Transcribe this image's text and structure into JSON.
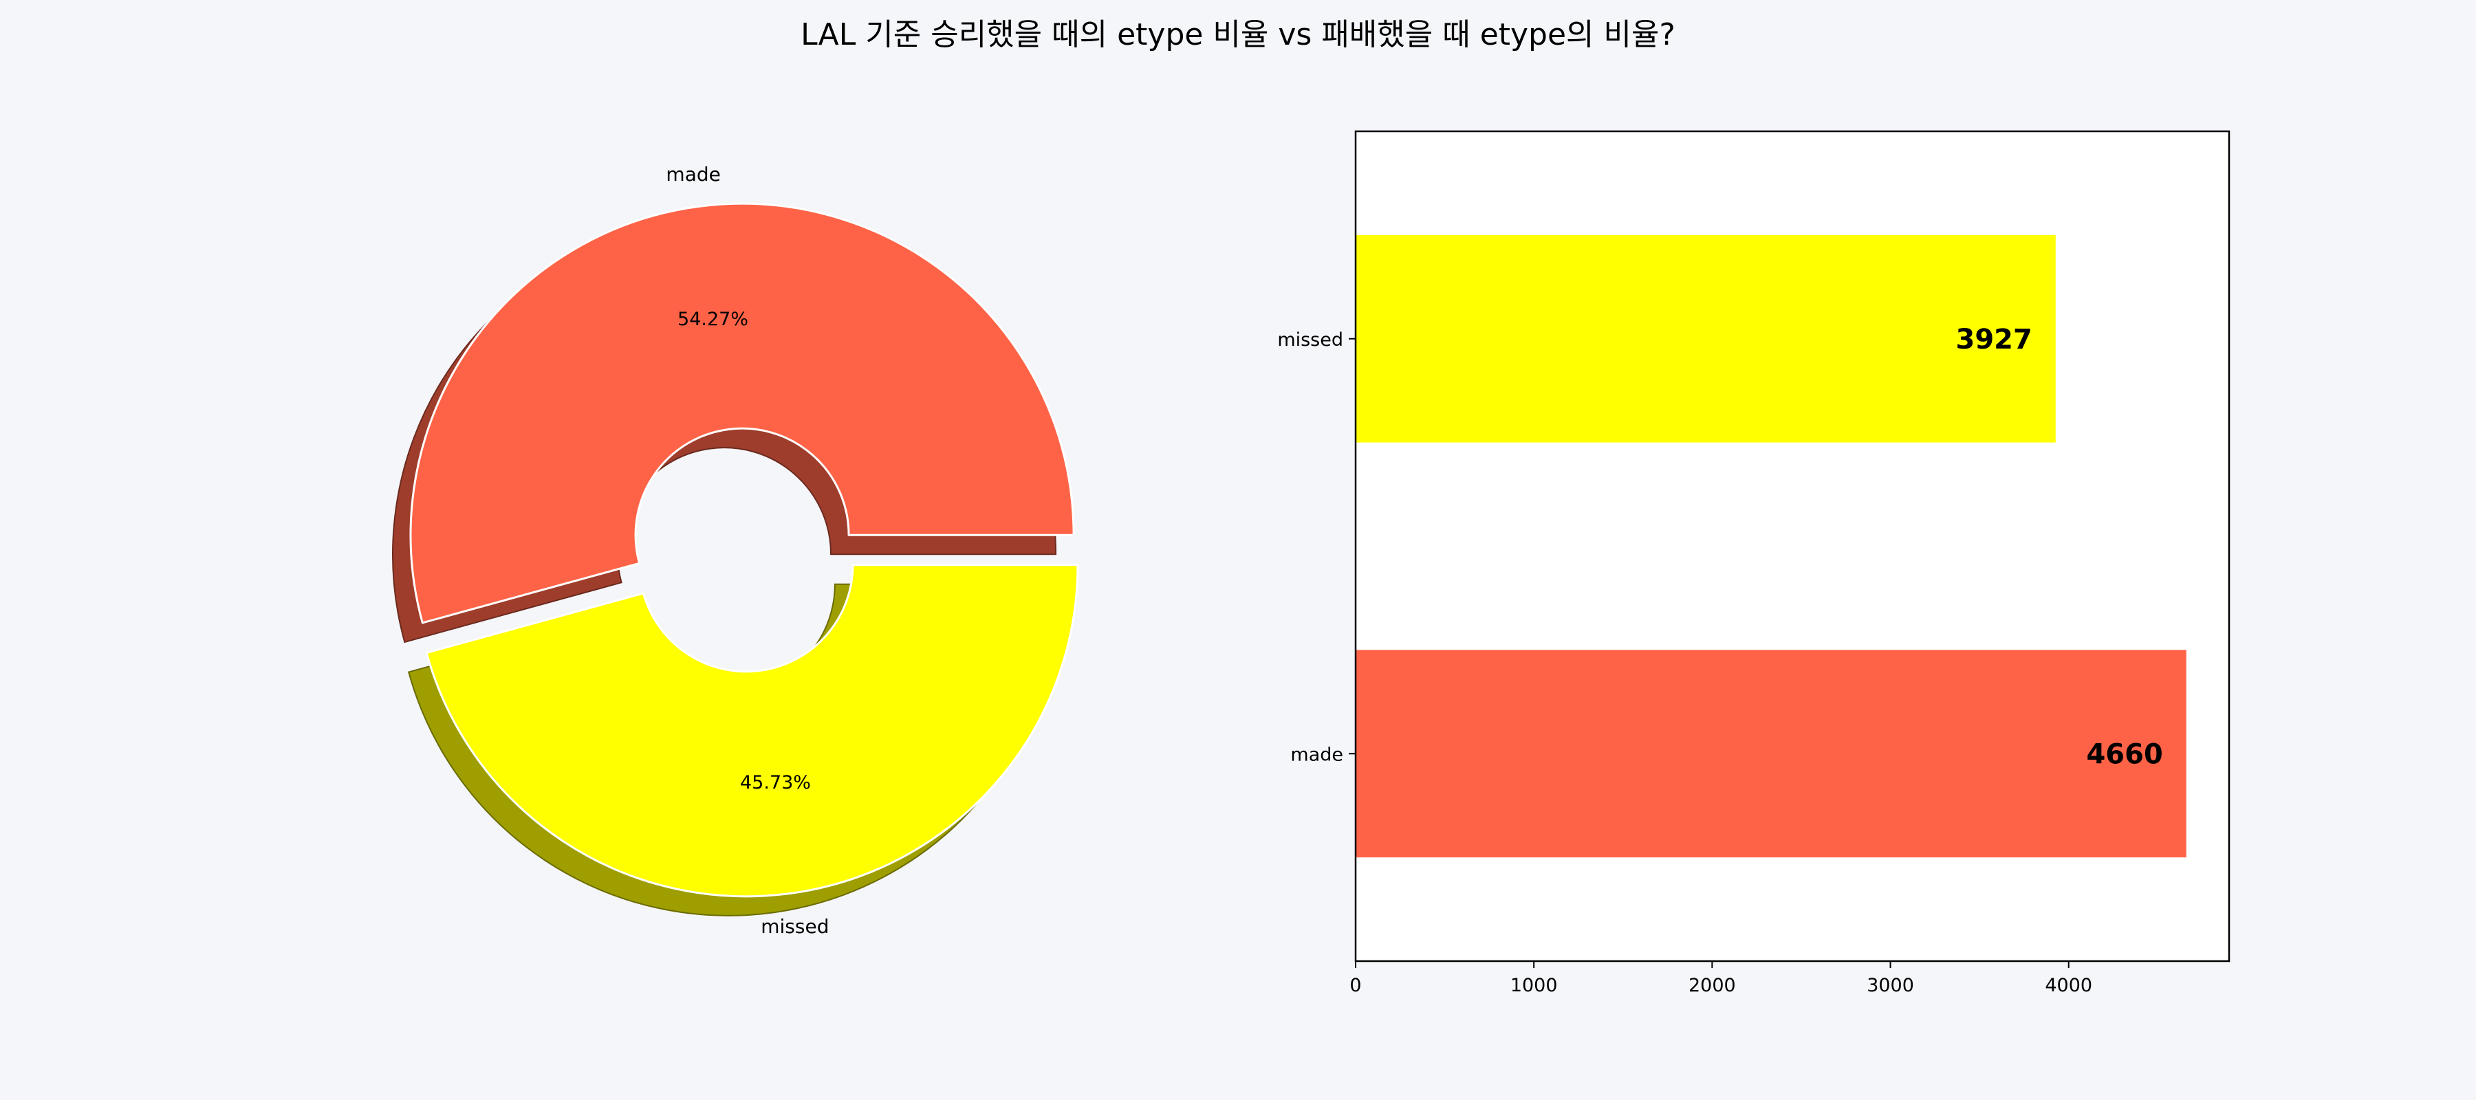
{
  "title": "LAL 기준 승리했을 때의 etype 비율 vs 패배했을 때 etype의 비율?",
  "colors": {
    "background": "#f5f6fa",
    "made": "#ff6347",
    "missed": "#ffff00",
    "axes_background": "#ffffff"
  },
  "chart_data": [
    {
      "type": "pie",
      "style": "donut, exploded, shadowed",
      "slices": [
        {
          "label": "made",
          "percent": 54.27,
          "percent_label": "54.27%",
          "color": "#ff6347"
        },
        {
          "label": "missed",
          "percent": 45.73,
          "percent_label": "45.73%",
          "color": "#ffff00"
        }
      ]
    },
    {
      "type": "bar",
      "orientation": "horizontal",
      "categories": [
        "made",
        "missed"
      ],
      "values": [
        4660,
        3927
      ],
      "value_labels": [
        "4660",
        "3927"
      ],
      "colors": [
        "#ff6347",
        "#ffff00"
      ],
      "xlim": [
        0,
        4900
      ],
      "xticks": [
        0,
        1000,
        2000,
        3000,
        4000
      ],
      "xtick_labels": [
        "0",
        "1000",
        "2000",
        "3000",
        "4000"
      ],
      "grid": false
    }
  ]
}
